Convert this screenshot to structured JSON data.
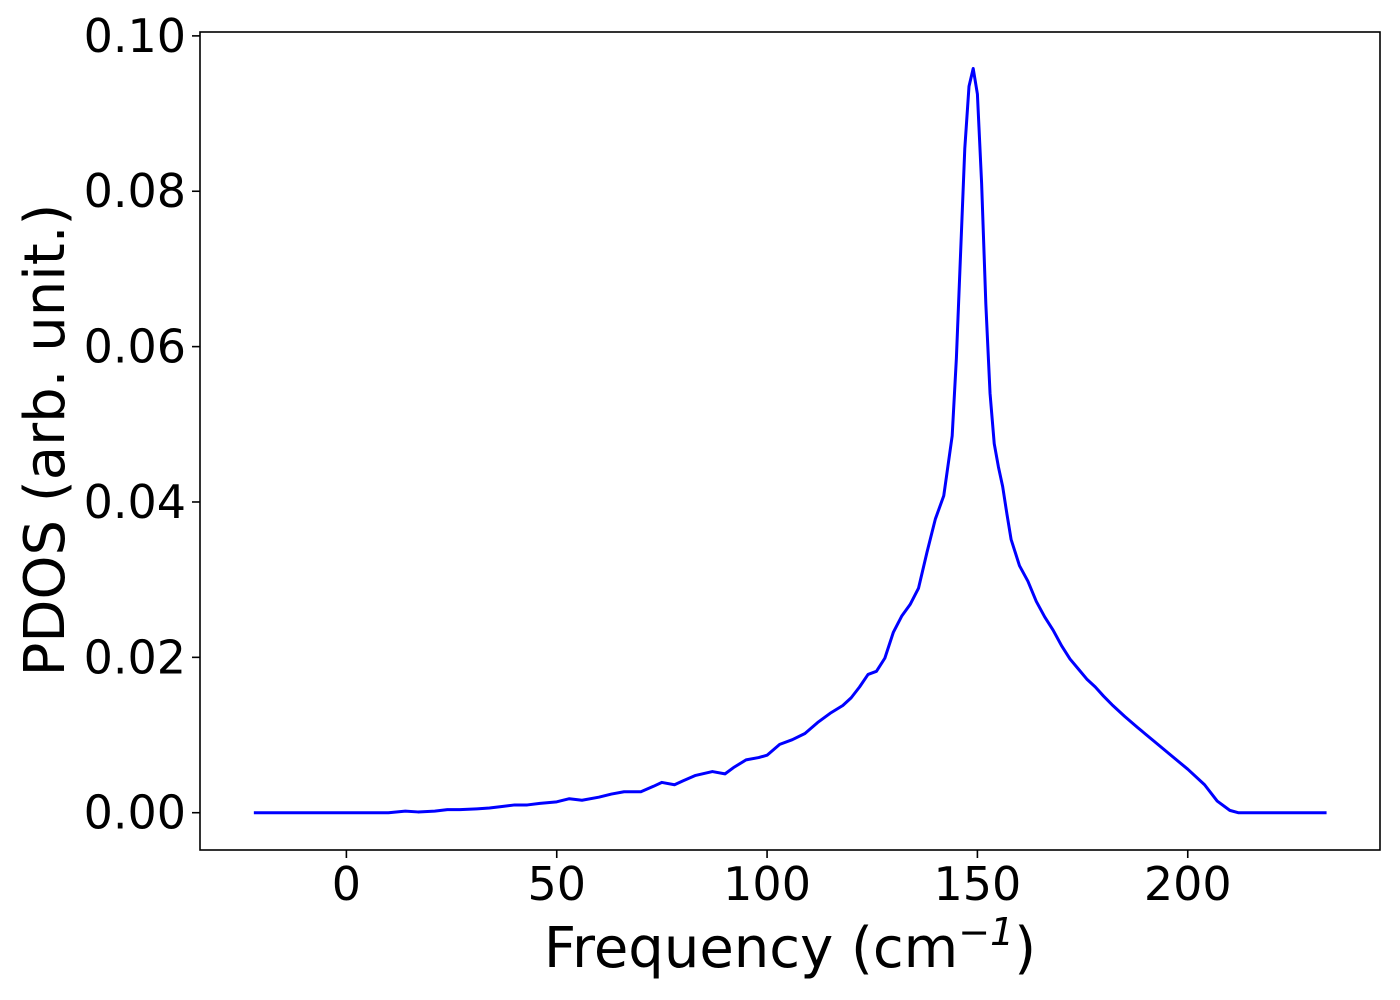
{
  "chart_data": {
    "type": "line",
    "title": "",
    "xlabel": "Frequency (cm",
    "xlabel_superscript": "−1",
    "xlabel_suffix": ")",
    "ylabel": "PDOS (arb. unit.)",
    "xlim": [
      -34.8,
      245.7
    ],
    "ylim": [
      -0.0048,
      0.1005
    ],
    "xticks": [
      0,
      50,
      100,
      150,
      200
    ],
    "xtick_labels": [
      "0",
      "50",
      "100",
      "150",
      "200"
    ],
    "yticks": [
      0.0,
      0.02,
      0.04,
      0.06,
      0.08,
      0.1
    ],
    "ytick_labels": [
      "0.00",
      "0.02",
      "0.04",
      "0.06",
      "0.08",
      "0.10"
    ],
    "grid": false,
    "legend": "none",
    "series": [
      {
        "color": "#0000ff",
        "x": [
          -22,
          -10,
          0,
          10,
          14,
          17,
          21,
          24,
          27,
          31,
          34,
          37,
          40,
          43,
          46,
          50,
          53,
          56,
          60,
          63,
          66,
          70,
          73,
          75,
          78,
          80,
          83,
          87,
          90,
          92,
          95,
          98,
          100,
          103,
          106,
          109,
          112,
          115,
          118,
          120,
          122,
          124,
          126,
          128,
          130,
          132,
          134,
          136,
          138,
          140,
          142,
          144,
          145,
          146,
          147,
          148,
          149,
          150,
          151,
          152,
          153,
          154,
          155,
          156,
          157,
          158,
          160,
          162,
          164,
          166,
          168,
          170,
          172,
          174,
          176,
          178,
          180,
          182,
          185,
          188,
          192,
          196,
          200,
          204,
          207,
          210,
          212,
          214,
          216,
          218,
          222,
          228,
          233
        ],
        "y": [
          0.0,
          0.0,
          0.0,
          0.0,
          0.0002,
          0.0001,
          0.0002,
          0.0004,
          0.0004,
          0.0005,
          0.0006,
          0.0008,
          0.001,
          0.001,
          0.0012,
          0.0014,
          0.0018,
          0.0016,
          0.002,
          0.0024,
          0.0027,
          0.0027,
          0.0034,
          0.0039,
          0.0036,
          0.0041,
          0.0048,
          0.0053,
          0.005,
          0.0058,
          0.0068,
          0.0071,
          0.0074,
          0.0088,
          0.0094,
          0.0102,
          0.0116,
          0.0128,
          0.0138,
          0.0148,
          0.0162,
          0.0178,
          0.0182,
          0.0199,
          0.0232,
          0.0253,
          0.0268,
          0.0289,
          0.0335,
          0.0378,
          0.0408,
          0.0485,
          0.0585,
          0.072,
          0.0855,
          0.0935,
          0.0958,
          0.0925,
          0.081,
          0.0655,
          0.054,
          0.0475,
          0.0445,
          0.042,
          0.0385,
          0.0352,
          0.0318,
          0.0298,
          0.0272,
          0.0252,
          0.0235,
          0.0215,
          0.0198,
          0.0185,
          0.0172,
          0.0162,
          0.015,
          0.0139,
          0.0124,
          0.011,
          0.0092,
          0.0074,
          0.0056,
          0.0036,
          0.0015,
          0.0003,
          0.0,
          0.0,
          0.0,
          0.0,
          0.0,
          0.0,
          0.0
        ]
      }
    ]
  }
}
